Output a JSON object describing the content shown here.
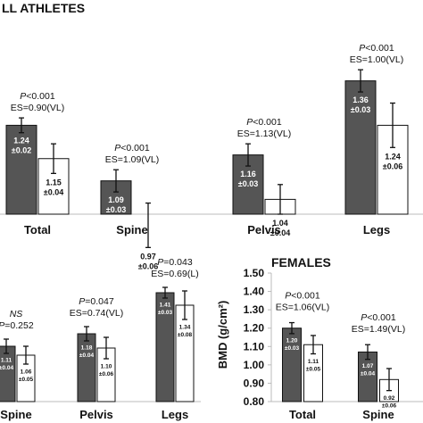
{
  "chart_data": [
    {
      "type": "bar",
      "title": "LL ATHLETES",
      "categories": [
        "Total",
        "Spine",
        "Pelvis",
        "Legs"
      ],
      "series": [
        {
          "values": [
            1.24,
            1.09,
            1.16,
            1.36
          ],
          "error": [
            0.02,
            0.03,
            0.03,
            0.03
          ],
          "color": "#555555",
          "labels": [
            [
              "1.24",
              "±0.02"
            ],
            [
              "1.09",
              "±0.03"
            ],
            [
              "1.16",
              "±0.03"
            ],
            [
              "1.36",
              "±0.03"
            ]
          ]
        },
        {
          "values": [
            1.15,
            0.97,
            1.04,
            1.24
          ],
          "error": [
            0.04,
            0.06,
            0.04,
            0.06
          ],
          "color": "#ffffff",
          "labels": [
            [
              "1.15",
              "±0.04"
            ],
            [
              "0.97",
              "±0.06"
            ],
            [
              "1.04",
              "±0.04"
            ],
            [
              "1.24",
              "±0.06"
            ]
          ]
        }
      ],
      "annotations": [
        {
          "p": "<0.001",
          "es": "ES=0.90(VL)"
        },
        {
          "p": "<0.001",
          "es": "ES=1.09(VL)"
        },
        {
          "p": "<0.001",
          "es": "ES=1.13(VL)"
        },
        {
          "p": "<0.001",
          "es": "ES=1.00(VL)"
        }
      ]
    },
    {
      "type": "bar",
      "categories": [
        "Spine",
        "Pelvis",
        "Legs"
      ],
      "series": [
        {
          "values": [
            1.11,
            1.18,
            1.41
          ],
          "error": [
            0.04,
            0.04,
            0.03
          ],
          "color": "#555555",
          "labels": [
            [
              "1.11",
              "±0.04"
            ],
            [
              "1.18",
              "±0.04"
            ],
            [
              "1.41",
              "±0.03"
            ]
          ]
        },
        {
          "values": [
            1.06,
            1.1,
            1.34
          ],
          "error": [
            0.05,
            0.06,
            0.08
          ],
          "color": "#ffffff",
          "labels": [
            [
              "1.06",
              "±0.05"
            ],
            [
              "1.10",
              "±0.06"
            ],
            [
              "1.34",
              "±0.08"
            ]
          ]
        }
      ],
      "annotations": [
        {
          "ns": "NS",
          "p": "=0.252"
        },
        {
          "p": "=0.047",
          "es": "ES=0.74(VL)"
        },
        {
          "p": "=0.043",
          "es": "ES=0.69(L)"
        }
      ]
    },
    {
      "type": "bar",
      "title": "FEMALES",
      "ylabel": "BMD (g/cm²)",
      "ylim": [
        0.8,
        1.5
      ],
      "yticks": [
        "0.80",
        "0.90",
        "1.00",
        "1.10",
        "1.20",
        "1.30",
        "1.40",
        "1.50"
      ],
      "categories": [
        "Total",
        "Spine"
      ],
      "series": [
        {
          "values": [
            1.2,
            1.07
          ],
          "error": [
            0.03,
            0.04
          ],
          "color": "#555555",
          "labels": [
            [
              "1.20",
              "±0.03"
            ],
            [
              "1.07",
              "±0.04"
            ]
          ]
        },
        {
          "values": [
            1.11,
            0.92
          ],
          "error": [
            0.05,
            0.06
          ],
          "color": "#ffffff",
          "labels": [
            [
              "1.11",
              "±0.05"
            ],
            [
              "0.92",
              "±0.06"
            ]
          ]
        }
      ],
      "annotations": [
        {
          "p": "<0.001",
          "es": "ES=1.06(VL)"
        },
        {
          "p": "<0.001",
          "es": "ES=1.49(VL)"
        }
      ]
    }
  ]
}
